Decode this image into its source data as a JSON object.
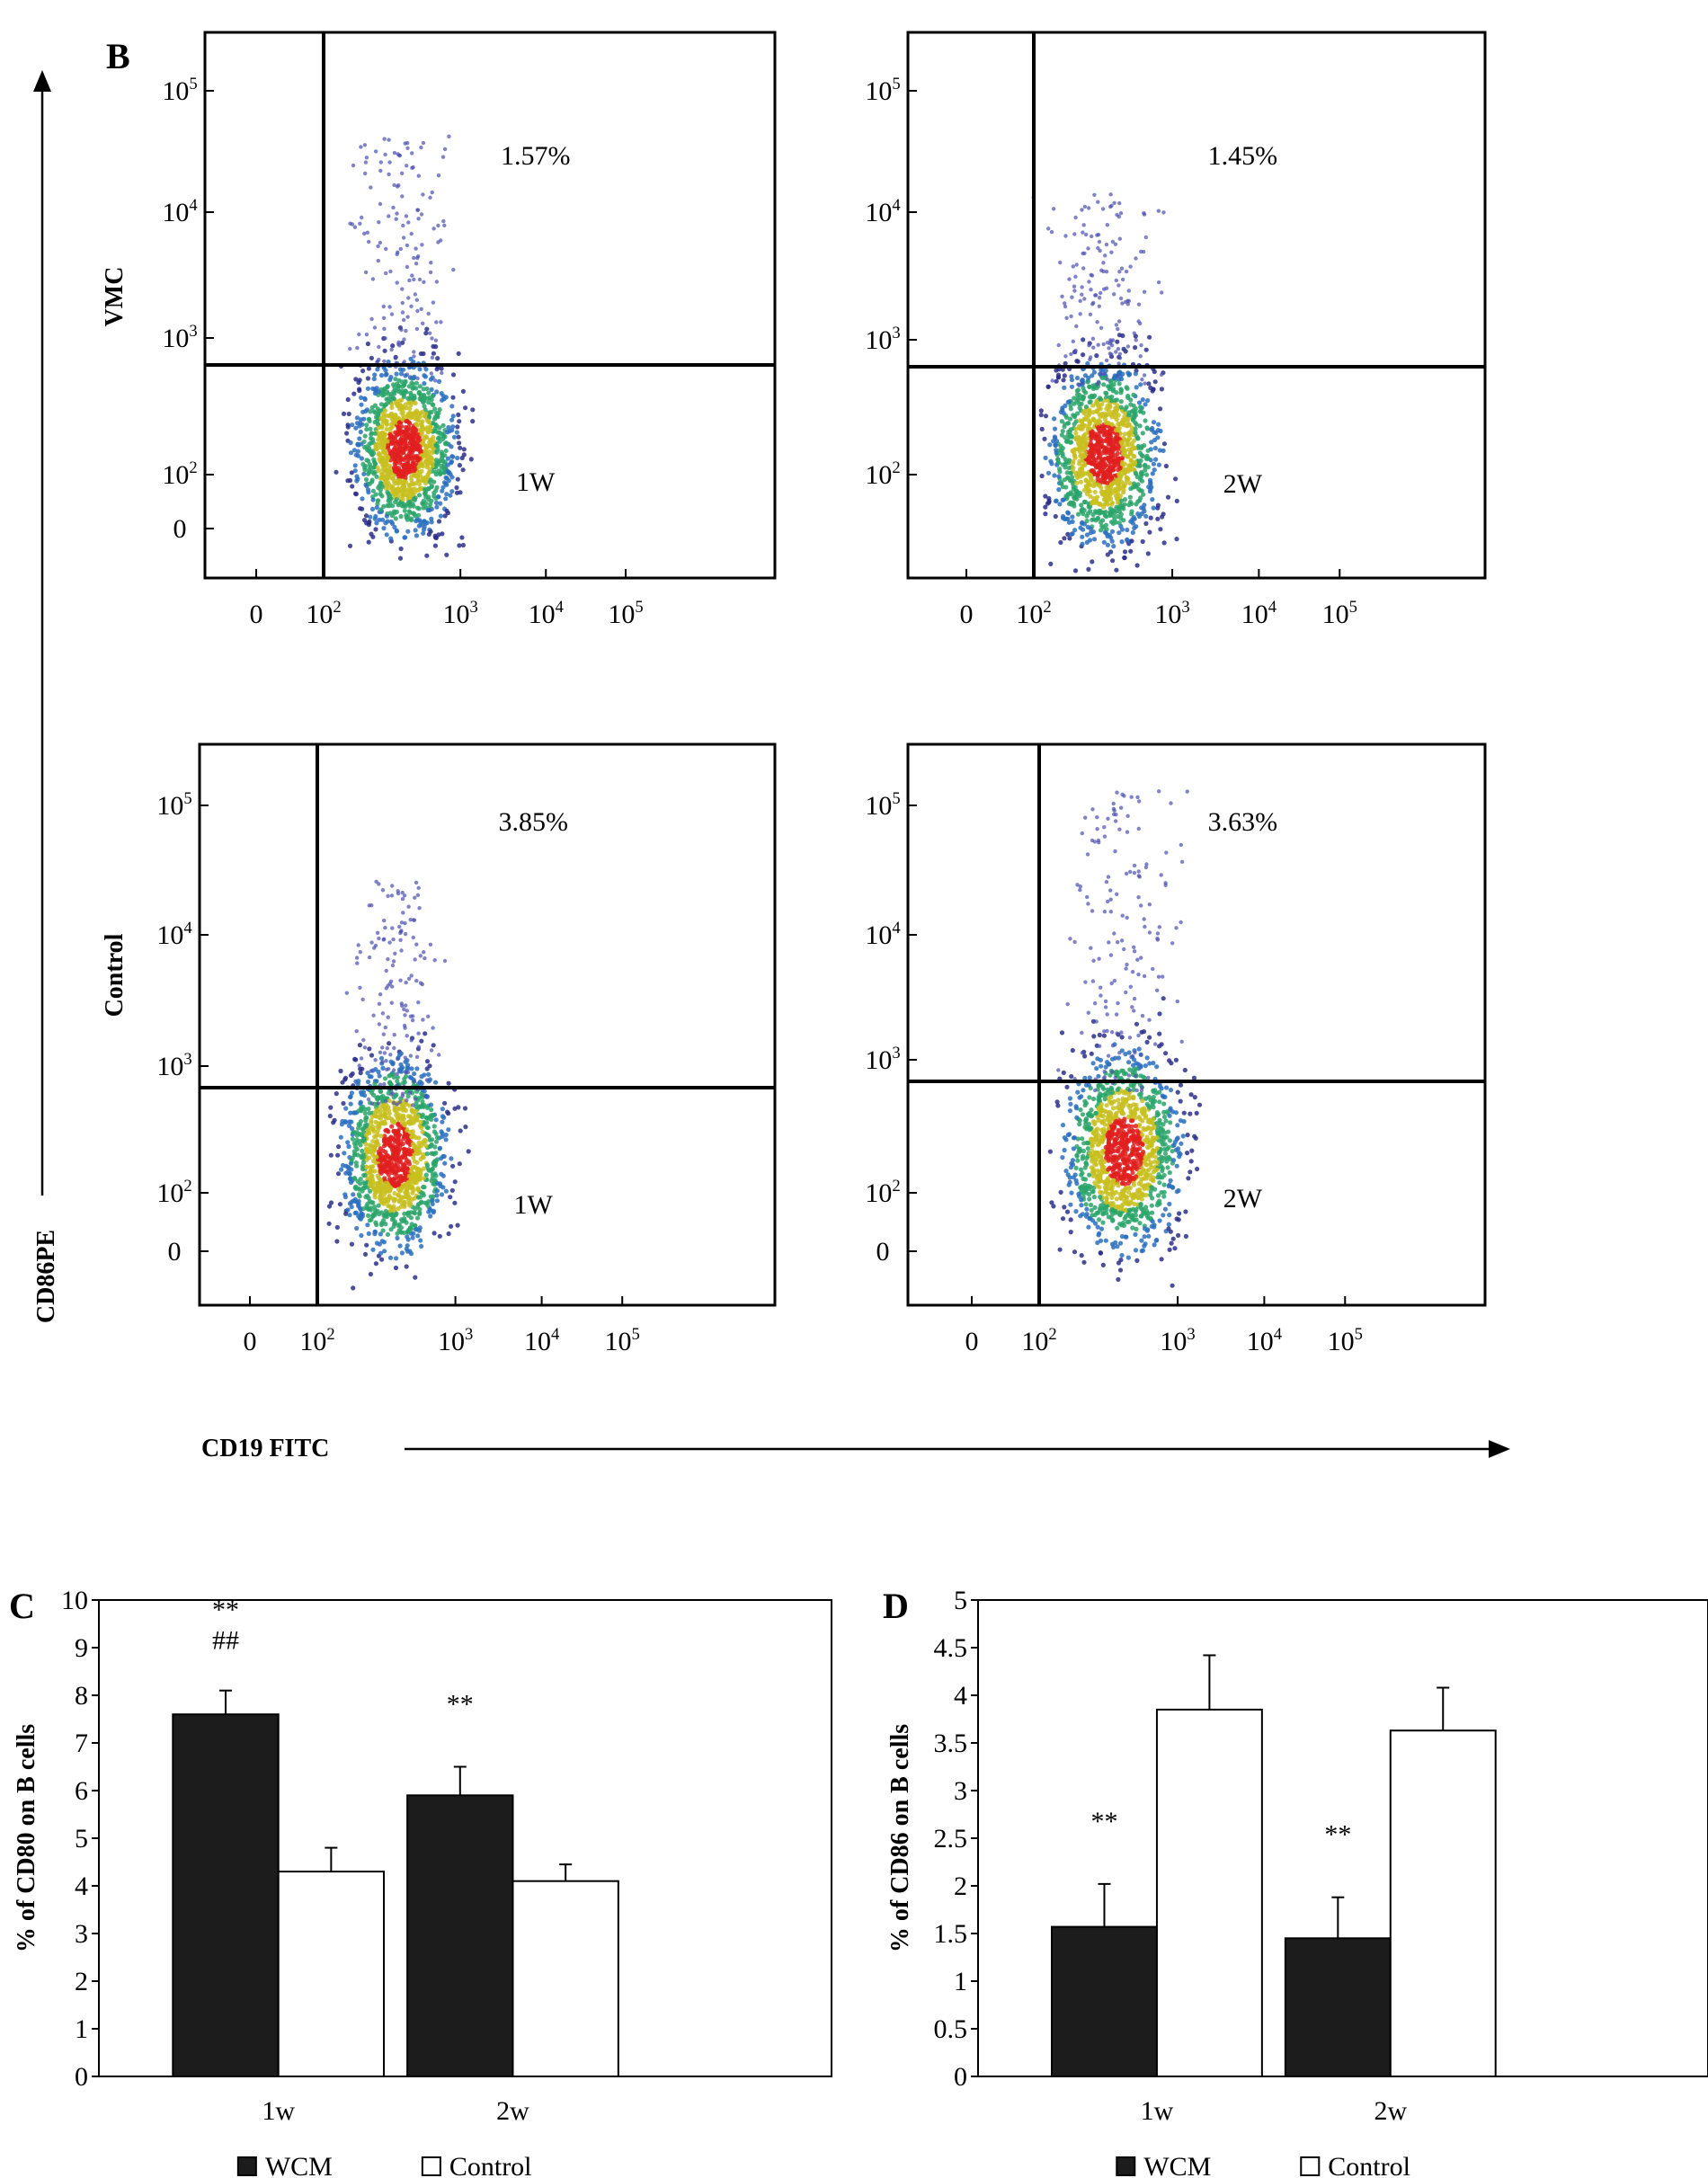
{
  "panel_b": {
    "letter": "B",
    "y_axis_label": "CD86PE",
    "x_axis_label": "CD19 FITC",
    "row_labels": [
      "VMC",
      "Control"
    ],
    "tick_labels": [
      "0",
      "10^2",
      "10^3",
      "10^4",
      "10^5"
    ],
    "plots": [
      {
        "group": "VMC",
        "time": "1W",
        "upper_right_percent": "1.57%"
      },
      {
        "group": "VMC",
        "time": "2W",
        "upper_right_percent": "1.45%"
      },
      {
        "group": "Control",
        "time": "1W",
        "upper_right_percent": "3.85%"
      },
      {
        "group": "Control",
        "time": "2W",
        "upper_right_percent": "3.63%"
      }
    ]
  },
  "chart_data": [
    {
      "type": "bar",
      "panel": "C",
      "ylabel": "% of CD80 on B cells",
      "categories": [
        "1w",
        "2w"
      ],
      "ylim": [
        0,
        10
      ],
      "yticks": [
        0,
        1,
        2,
        3,
        4,
        5,
        6,
        7,
        8,
        9,
        10
      ],
      "series": [
        {
          "name": "WCM",
          "values": [
            7.6,
            5.9
          ],
          "errors": [
            0.5,
            0.6
          ],
          "color": "#1c1c1c"
        },
        {
          "name": "Control",
          "values": [
            4.3,
            4.1
          ],
          "errors": [
            0.5,
            0.35
          ],
          "color": "#ffffff"
        }
      ],
      "annotations": [
        {
          "category": "1w",
          "lines": [
            "**",
            "##"
          ]
        },
        {
          "category": "2w",
          "lines": [
            "**"
          ]
        }
      ],
      "legend": [
        "WCM",
        "Control"
      ]
    },
    {
      "type": "bar",
      "panel": "D",
      "ylabel": "% of CD86 on B cells",
      "categories": [
        "1w",
        "2w"
      ],
      "ylim": [
        0,
        5
      ],
      "yticks": [
        "0",
        "0.5",
        "1",
        "1.5",
        "2",
        "2.5",
        "3",
        "3.5",
        "4",
        "4.5",
        "5"
      ],
      "series": [
        {
          "name": "WCM",
          "values": [
            1.57,
            1.45
          ],
          "errors": [
            0.45,
            0.43
          ],
          "color": "#1c1c1c"
        },
        {
          "name": "Control",
          "values": [
            3.85,
            3.63
          ],
          "errors": [
            0.57,
            0.45
          ],
          "color": "#ffffff"
        }
      ],
      "annotations": [
        {
          "category": "1w",
          "lines": [
            "**"
          ]
        },
        {
          "category": "2w",
          "lines": [
            "**"
          ]
        }
      ],
      "legend": [
        "WCM",
        "Control"
      ]
    }
  ]
}
